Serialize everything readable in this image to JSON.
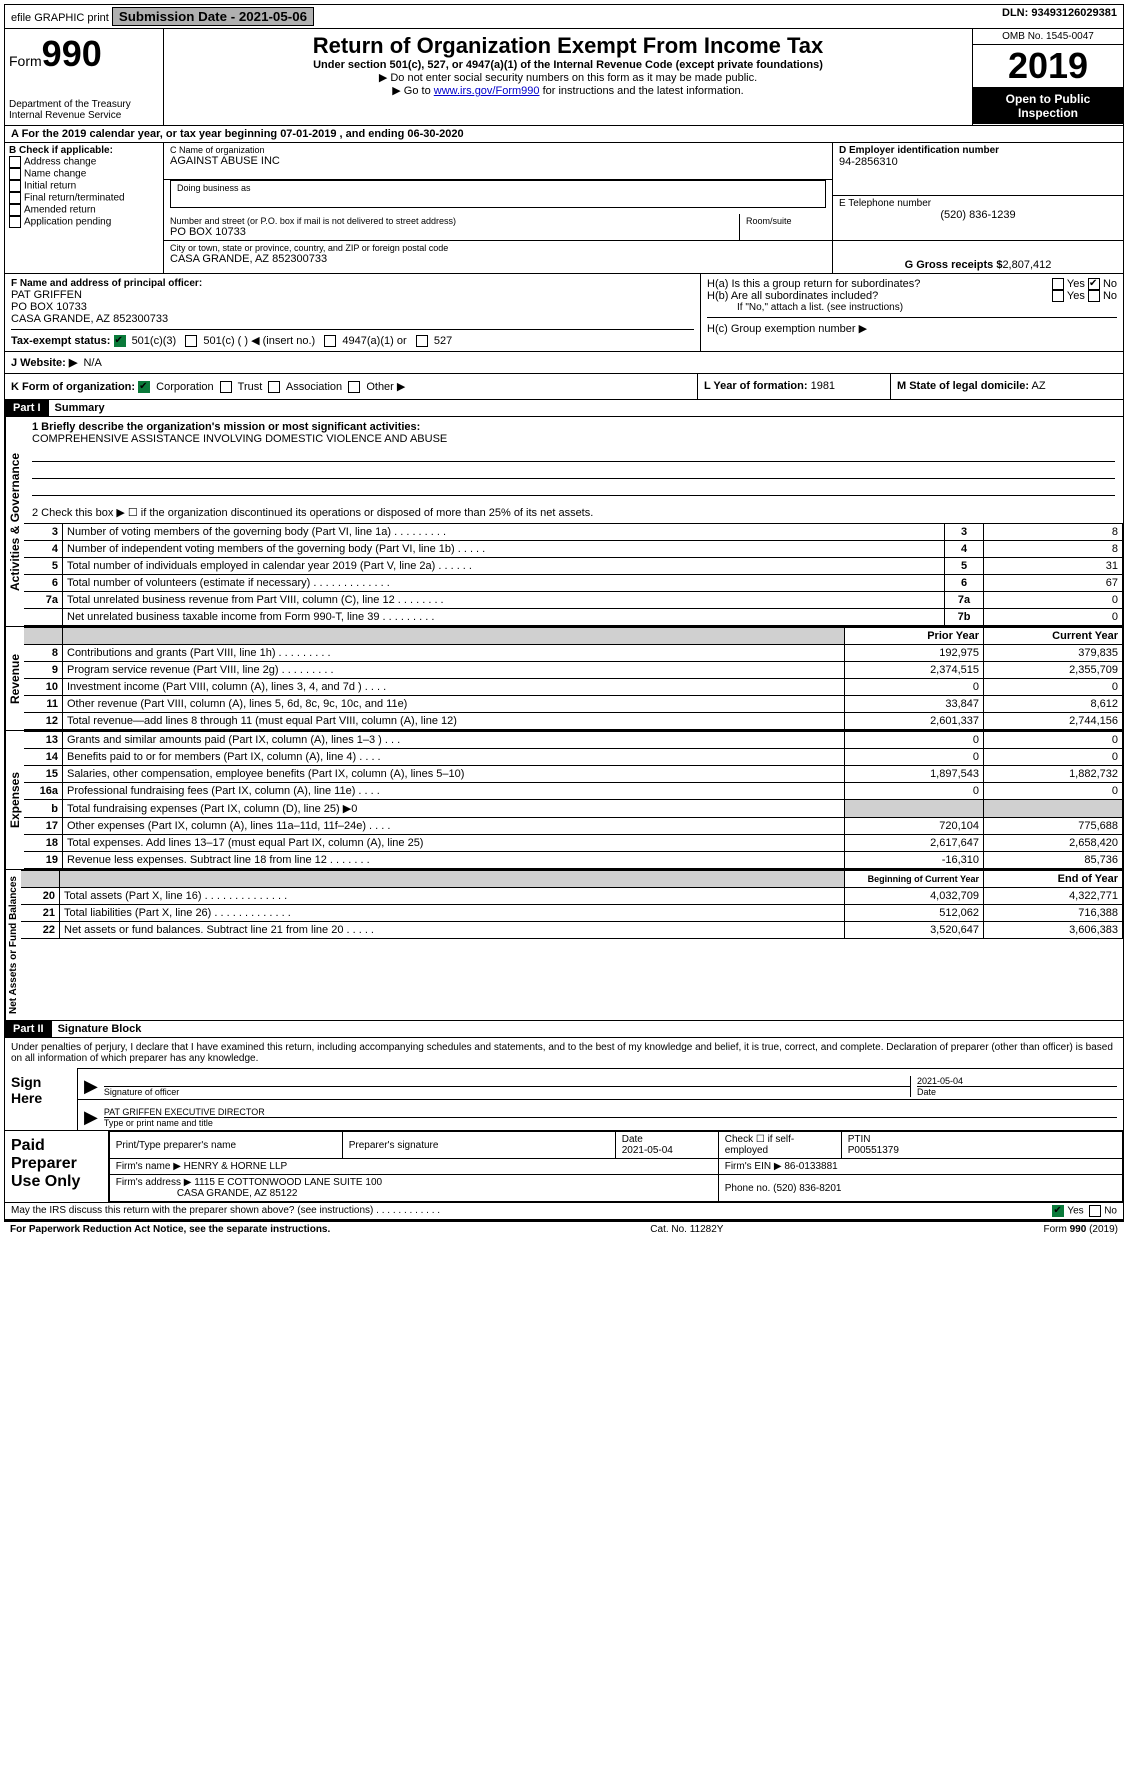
{
  "top": {
    "efile": "efile GRAPHIC print",
    "submission": "Submission Date - 2021-05-06",
    "dln": "DLN: 93493126029381"
  },
  "header": {
    "form_word": "Form",
    "form_num": "990",
    "dept": "Department of the Treasury",
    "irs": "Internal Revenue Service",
    "title": "Return of Organization Exempt From Income Tax",
    "subtitle": "Under section 501(c), 527, or 4947(a)(1) of the Internal Revenue Code (except private foundations)",
    "note1": "▶ Do not enter social security numbers on this form as it may be made public.",
    "note2_pre": "▶ Go to ",
    "note2_link": "www.irs.gov/Form990",
    "note2_post": " for instructions and the latest information.",
    "omb": "OMB No. 1545-0047",
    "year": "2019",
    "open": "Open to Public Inspection"
  },
  "period": {
    "label": "A For the 2019 calendar year, or tax year beginning 07-01-2019    , and ending 06-30-2020"
  },
  "b": {
    "hdr": "B Check if applicable:",
    "items": [
      "Address change",
      "Name change",
      "Initial return",
      "Final return/terminated",
      "Amended return",
      "Application pending"
    ]
  },
  "c": {
    "label": "C Name of organization",
    "name": "AGAINST ABUSE INC",
    "dba_label": "Doing business as",
    "street_label": "Number and street (or P.O. box if mail is not delivered to street address)",
    "street": "PO BOX 10733",
    "room_label": "Room/suite",
    "city_label": "City or town, state or province, country, and ZIP or foreign postal code",
    "city": "CASA GRANDE, AZ  852300733"
  },
  "d": {
    "label": "D Employer identification number",
    "ein": "94-2856310",
    "e_label": "E Telephone number",
    "phone": "(520) 836-1239",
    "g_label": "G Gross receipts $",
    "g_val": "2,807,412"
  },
  "f": {
    "label": "F  Name and address of principal officer:",
    "name": "PAT GRIFFEN",
    "addr1": "PO BOX 10733",
    "addr2": "CASA GRANDE, AZ  852300733"
  },
  "h": {
    "a_label": "H(a)  Is this a group return for subordinates?",
    "b_label": "H(b)  Are all subordinates included?",
    "b_note": "If \"No,\" attach a list. (see instructions)",
    "c_label": "H(c)  Group exemption number ▶",
    "yes": "Yes",
    "no": "No"
  },
  "i": {
    "label": "Tax-exempt status:",
    "opts": [
      "501(c)(3)",
      "501(c) (  ) ◀ (insert no.)",
      "4947(a)(1) or",
      "527"
    ]
  },
  "j": {
    "label": "J   Website: ▶",
    "val": "N/A"
  },
  "k": {
    "label": "K Form of organization:",
    "opts": [
      "Corporation",
      "Trust",
      "Association",
      "Other ▶"
    ],
    "l_label": "L Year of formation:",
    "l_val": "1981",
    "m_label": "M State of legal domicile:",
    "m_val": "AZ"
  },
  "part1": {
    "hdr": "Part I",
    "title": "Summary",
    "line1_label": "1  Briefly describe the organization's mission or most significant activities:",
    "line1_val": "COMPREHENSIVE ASSISTANCE INVOLVING DOMESTIC VIOLENCE AND ABUSE",
    "line2": "2   Check this box ▶ ☐  if the organization discontinued its operations or disposed of more than 25% of its net assets.",
    "gov_rows": [
      {
        "n": "3",
        "d": "Number of voting members of the governing body (Part VI, line 1a)   .    .    .    .    .    .    .    .    .",
        "b": "3",
        "v": "8"
      },
      {
        "n": "4",
        "d": "Number of independent voting members of the governing body (Part VI, line 1b)   .    .    .    .    .",
        "b": "4",
        "v": "8"
      },
      {
        "n": "5",
        "d": "Total number of individuals employed in calendar year 2019 (Part V, line 2a)   .    .    .    .    .    .",
        "b": "5",
        "v": "31"
      },
      {
        "n": "6",
        "d": "Total number of volunteers (estimate if necessary)   .    .    .    .    .    .    .    .    .    .    .    .    .",
        "b": "6",
        "v": "67"
      },
      {
        "n": "7a",
        "d": "Total unrelated business revenue from Part VIII, column (C), line 12   .    .    .    .    .    .    .    .",
        "b": "7a",
        "v": "0"
      },
      {
        "n": "",
        "d": "Net unrelated business taxable income from Form 990-T, line 39   .    .    .    .    .    .    .    .    .",
        "b": "7b",
        "v": "0"
      }
    ],
    "rev_hdr_prior": "Prior Year",
    "rev_hdr_curr": "Current Year",
    "rev_rows": [
      {
        "n": "8",
        "d": "Contributions and grants (Part VIII, line 1h)   .    .    .    .    .    .    .    .    .",
        "p": "192,975",
        "c": "379,835"
      },
      {
        "n": "9",
        "d": "Program service revenue (Part VIII, line 2g)   .    .    .    .    .    .    .    .    .",
        "p": "2,374,515",
        "c": "2,355,709"
      },
      {
        "n": "10",
        "d": "Investment income (Part VIII, column (A), lines 3, 4, and 7d )   .    .    .    .",
        "p": "0",
        "c": "0"
      },
      {
        "n": "11",
        "d": "Other revenue (Part VIII, column (A), lines 5, 6d, 8c, 9c, 10c, and 11e)",
        "p": "33,847",
        "c": "8,612"
      },
      {
        "n": "12",
        "d": "Total revenue—add lines 8 through 11 (must equal Part VIII, column (A), line 12)",
        "p": "2,601,337",
        "c": "2,744,156"
      }
    ],
    "exp_rows": [
      {
        "n": "13",
        "d": "Grants and similar amounts paid (Part IX, column (A), lines 1–3 )   .    .    .",
        "p": "0",
        "c": "0"
      },
      {
        "n": "14",
        "d": "Benefits paid to or for members (Part IX, column (A), line 4)   .    .    .    .",
        "p": "0",
        "c": "0"
      },
      {
        "n": "15",
        "d": "Salaries, other compensation, employee benefits (Part IX, column (A), lines 5–10)",
        "p": "1,897,543",
        "c": "1,882,732"
      },
      {
        "n": "16a",
        "d": "Professional fundraising fees (Part IX, column (A), line 11e)   .    .    .    .",
        "p": "0",
        "c": "0"
      },
      {
        "n": "b",
        "d": "Total fundraising expenses (Part IX, column (D), line 25) ▶0",
        "p": "",
        "c": "",
        "shade": true
      },
      {
        "n": "17",
        "d": "Other expenses (Part IX, column (A), lines 11a–11d, 11f–24e)   .    .    .    .",
        "p": "720,104",
        "c": "775,688"
      },
      {
        "n": "18",
        "d": "Total expenses. Add lines 13–17 (must equal Part IX, column (A), line 25)",
        "p": "2,617,647",
        "c": "2,658,420"
      },
      {
        "n": "19",
        "d": "Revenue less expenses. Subtract line 18 from line 12   .    .    .    .    .    .    .",
        "p": "-16,310",
        "c": "85,736"
      }
    ],
    "net_hdr_begin": "Beginning of Current Year",
    "net_hdr_end": "End of Year",
    "net_rows": [
      {
        "n": "20",
        "d": "Total assets (Part X, line 16)   .    .    .    .    .    .    .    .    .    .    .    .    .    .",
        "p": "4,032,709",
        "c": "4,322,771"
      },
      {
        "n": "21",
        "d": "Total liabilities (Part X, line 26)   .    .    .    .    .    .    .    .    .    .    .    .    .",
        "p": "512,062",
        "c": "716,388"
      },
      {
        "n": "22",
        "d": "Net assets or fund balances. Subtract line 21 from line 20   .    .    .    .    .",
        "p": "3,520,647",
        "c": "3,606,383"
      }
    ],
    "side_gov": "Activities & Governance",
    "side_rev": "Revenue",
    "side_exp": "Expenses",
    "side_net": "Net Assets or Fund Balances"
  },
  "part2": {
    "hdr": "Part II",
    "title": "Signature Block",
    "perjury": "Under penalties of perjury, I declare that I have examined this return, including accompanying schedules and statements, and to the best of my knowledge and belief, it is true, correct, and complete. Declaration of preparer (other than officer) is based on all information of which preparer has any knowledge.",
    "sign_here": "Sign Here",
    "sig_officer": "Signature of officer",
    "date": "Date",
    "date_val": "2021-05-04",
    "officer_name": "PAT GRIFFEN  EXECUTIVE DIRECTOR",
    "type_name": "Type or print name and title",
    "paid": "Paid Preparer Use Only",
    "prep_name_label": "Print/Type preparer's name",
    "prep_sig_label": "Preparer's signature",
    "prep_date": "2021-05-04",
    "check_if": "Check ☐ if self-employed",
    "ptin_label": "PTIN",
    "ptin": "P00551379",
    "firm_name_label": "Firm's name     ▶",
    "firm_name": "HENRY & HORNE LLP",
    "firm_ein_label": "Firm's EIN ▶",
    "firm_ein": "86-0133881",
    "firm_addr_label": "Firm's address ▶",
    "firm_addr1": "1115 E COTTONWOOD LANE SUITE 100",
    "firm_addr2": "CASA GRANDE, AZ  85122",
    "phone_label": "Phone no.",
    "phone": "(520) 836-8201",
    "discuss": "May the IRS discuss this return with the preparer shown above? (see instructions)   .    .    .    .    .    .    .    .    .    .    .    .",
    "yes": "Yes",
    "no": "No"
  },
  "footer": {
    "paperwork": "For Paperwork Reduction Act Notice, see the separate instructions.",
    "cat": "Cat. No. 11282Y",
    "form": "Form 990 (2019)"
  }
}
